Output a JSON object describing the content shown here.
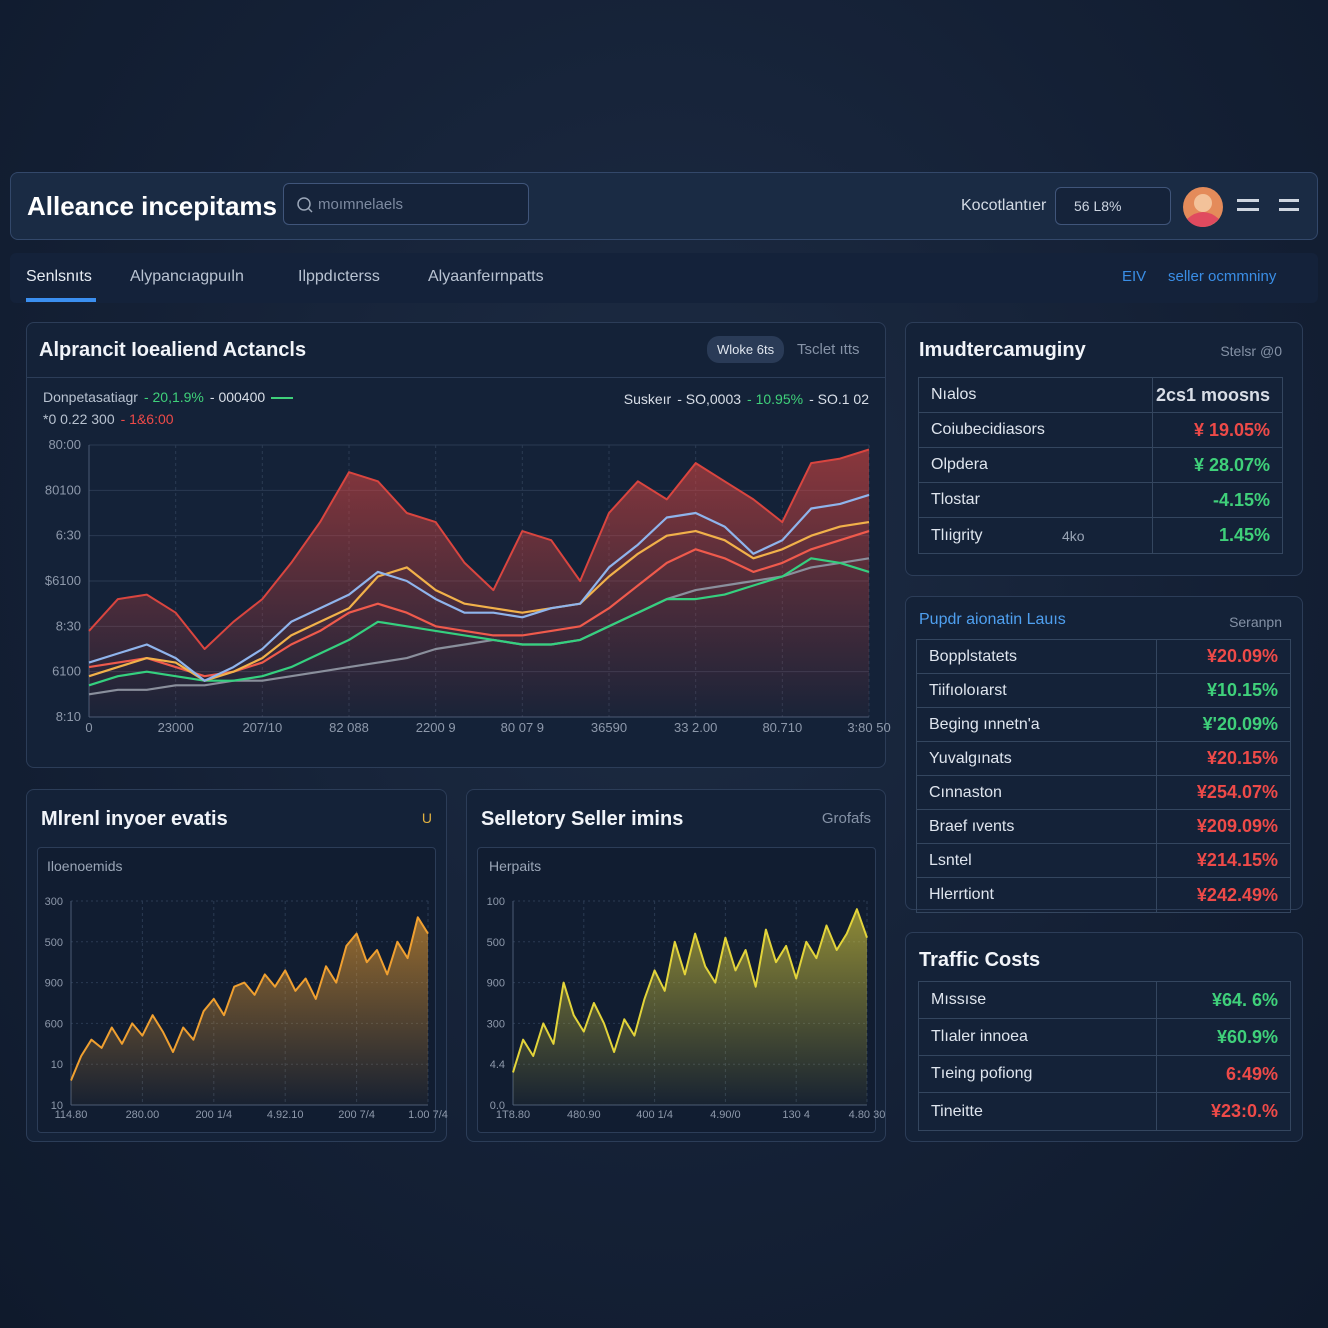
{
  "header": {
    "title": "Alleance incepitams",
    "search": "moımnelaels",
    "status_label": "Kocotlantıer",
    "status_value": "56 L8%"
  },
  "tabs": {
    "items": [
      "Senlsnıts",
      "Alypancıagpuıln",
      "Ilppdıcterss",
      "Alyaanfeırnpatts"
    ],
    "right": [
      "EIV",
      "seller ocmmniny"
    ]
  },
  "main_panel": {
    "title": "Alprancit Ioealiend Actancls",
    "buttons": [
      "Wloke 6ts",
      "Tsclet ıtts"
    ],
    "legend_left": [
      "Donpetasatiagr",
      "- 20,1.9%",
      "- 000400",
      "*0 0.22 300",
      "- 1&6:00"
    ],
    "legend_right": [
      "Suskeır",
      "- SO,0003",
      "- 10.95%",
      "- SO.1 02"
    ]
  },
  "left_panel": {
    "title": "Mlrenl inyoer evatis",
    "corner": "U",
    "label": "Iloenoemids"
  },
  "mid_panel": {
    "title": "Selletory Seller imins",
    "corner": "Grofafs",
    "label": "Herpaits"
  },
  "chart_data": [
    {
      "type": "line",
      "grid": true,
      "xlim": [
        0,
        27
      ],
      "ylim": [
        0,
        6
      ],
      "x": [
        0,
        1,
        2,
        3,
        4,
        5,
        6,
        7,
        8,
        9,
        10,
        11,
        12,
        13,
        14,
        15,
        16,
        17,
        18,
        19,
        20,
        21,
        22,
        23,
        24,
        25,
        26,
        27
      ],
      "xticks": [
        {
          "value": 0,
          "label": "0"
        },
        {
          "value": 3,
          "label": "23000"
        },
        {
          "value": 6,
          "label": "207/10"
        },
        {
          "value": 9,
          "label": "82 088"
        },
        {
          "value": 12,
          "label": "2200 9"
        },
        {
          "value": 15,
          "label": "80 07 9"
        },
        {
          "value": 18,
          "label": "36590"
        },
        {
          "value": 21,
          "label": "33 2.00"
        },
        {
          "value": 24,
          "label": "80.710"
        },
        {
          "value": 27,
          "label": "3:80 50"
        }
      ],
      "yticks": [
        {
          "value": 0,
          "label": "8:10"
        },
        {
          "value": 1,
          "label": "6100"
        },
        {
          "value": 2,
          "label": "8:30"
        },
        {
          "value": 3,
          "label": "$6100"
        },
        {
          "value": 4,
          "label": "6:30"
        },
        {
          "value": 5,
          "label": "80100"
        },
        {
          "value": 6,
          "label": "80:00"
        }
      ],
      "series": [
        {
          "type": "area",
          "color": "#d9453f",
          "values": [
            1.9,
            2.6,
            2.7,
            2.3,
            1.5,
            2.1,
            2.6,
            3.4,
            4.3,
            5.4,
            5.2,
            4.5,
            4.3,
            3.4,
            2.8,
            4.1,
            3.9,
            3.0,
            4.5,
            5.2,
            4.8,
            5.6,
            5.2,
            4.8,
            4.3,
            5.6,
            5.7,
            5.9
          ]
        },
        {
          "color": "#8a8f9c",
          "values": [
            0.5,
            0.6,
            0.6,
            0.7,
            0.7,
            0.8,
            0.8,
            0.9,
            1.0,
            1.1,
            1.2,
            1.3,
            1.5,
            1.6,
            1.7,
            1.6,
            1.6,
            1.7,
            2.0,
            2.3,
            2.6,
            2.8,
            2.9,
            3.0,
            3.1,
            3.3,
            3.4,
            3.5
          ]
        },
        {
          "color": "#35d07f",
          "values": [
            0.7,
            0.9,
            1.0,
            0.9,
            0.8,
            0.8,
            0.9,
            1.1,
            1.4,
            1.7,
            2.1,
            2.0,
            1.9,
            1.8,
            1.7,
            1.6,
            1.6,
            1.7,
            2.0,
            2.3,
            2.6,
            2.6,
            2.7,
            2.9,
            3.1,
            3.5,
            3.4,
            3.2
          ]
        },
        {
          "color": "#ef5a4c",
          "values": [
            1.1,
            1.2,
            1.3,
            1.1,
            0.9,
            1.0,
            1.2,
            1.6,
            1.9,
            2.3,
            2.5,
            2.3,
            2.0,
            1.9,
            1.8,
            1.8,
            1.9,
            2.0,
            2.4,
            2.9,
            3.4,
            3.7,
            3.5,
            3.2,
            3.4,
            3.7,
            3.9,
            4.1
          ]
        },
        {
          "color": "#f1b14a",
          "values": [
            0.9,
            1.1,
            1.3,
            1.2,
            0.8,
            1.0,
            1.3,
            1.8,
            2.1,
            2.4,
            3.1,
            3.3,
            2.8,
            2.5,
            2.4,
            2.3,
            2.4,
            2.5,
            3.1,
            3.6,
            4.0,
            4.1,
            3.9,
            3.5,
            3.7,
            4.0,
            4.2,
            4.3
          ]
        },
        {
          "color": "#8fb4ec",
          "values": [
            1.2,
            1.4,
            1.6,
            1.3,
            0.8,
            1.1,
            1.5,
            2.1,
            2.4,
            2.7,
            3.2,
            3.0,
            2.6,
            2.3,
            2.3,
            2.2,
            2.4,
            2.5,
            3.3,
            3.8,
            4.4,
            4.5,
            4.2,
            3.6,
            3.9,
            4.6,
            4.7,
            4.9
          ]
        }
      ]
    },
    {
      "type": "area",
      "grid": true,
      "xlim": [
        0,
        35
      ],
      "ylim": [
        0,
        5
      ],
      "x": [
        0,
        1,
        2,
        3,
        4,
        5,
        6,
        7,
        8,
        9,
        10,
        11,
        12,
        13,
        14,
        15,
        16,
        17,
        18,
        19,
        20,
        21,
        22,
        23,
        24,
        25,
        26,
        27,
        28,
        29,
        30,
        31,
        32,
        33,
        34,
        35
      ],
      "xticks": [
        {
          "value": 0,
          "label": "114.80"
        },
        {
          "value": 7,
          "label": "280.00"
        },
        {
          "value": 14,
          "label": "200 1/4"
        },
        {
          "value": 21,
          "label": "4.92.10"
        },
        {
          "value": 28,
          "label": "200 7/4"
        },
        {
          "value": 35,
          "label": "1.00 7/4"
        }
      ],
      "yticks": [
        {
          "value": 0,
          "label": "10"
        },
        {
          "value": 1,
          "label": "10"
        },
        {
          "value": 2,
          "label": "600"
        },
        {
          "value": 3,
          "label": "900"
        },
        {
          "value": 4,
          "label": "500"
        },
        {
          "value": 5,
          "label": "300"
        }
      ],
      "series": [
        {
          "color": "#f0a030",
          "values": [
            0.6,
            1.2,
            1.6,
            1.4,
            1.9,
            1.5,
            2.0,
            1.7,
            2.2,
            1.8,
            1.3,
            1.9,
            1.6,
            2.3,
            2.6,
            2.2,
            2.9,
            3.0,
            2.7,
            3.2,
            2.9,
            3.3,
            2.8,
            3.1,
            2.6,
            3.4,
            3.0,
            3.9,
            4.2,
            3.5,
            3.8,
            3.2,
            4.0,
            3.6,
            4.6,
            4.2
          ]
        }
      ]
    },
    {
      "type": "area",
      "grid": true,
      "xlim": [
        0,
        35
      ],
      "ylim": [
        0,
        5
      ],
      "x": [
        0,
        1,
        2,
        3,
        4,
        5,
        6,
        7,
        8,
        9,
        10,
        11,
        12,
        13,
        14,
        15,
        16,
        17,
        18,
        19,
        20,
        21,
        22,
        23,
        24,
        25,
        26,
        27,
        28,
        29,
        30,
        31,
        32,
        33,
        34,
        35
      ],
      "xticks": [
        {
          "value": 0,
          "label": "1T8.80"
        },
        {
          "value": 7,
          "label": "480.90"
        },
        {
          "value": 14,
          "label": "400 1/4"
        },
        {
          "value": 21,
          "label": "4.90/0"
        },
        {
          "value": 28,
          "label": "130 4"
        },
        {
          "value": 35,
          "label": "4.80 30"
        }
      ],
      "yticks": [
        {
          "value": 0,
          "label": "0.0"
        },
        {
          "value": 1,
          "label": "4.4"
        },
        {
          "value": 2,
          "label": "300"
        },
        {
          "value": 3,
          "label": "900"
        },
        {
          "value": 4,
          "label": "500"
        },
        {
          "value": 5,
          "label": "100"
        }
      ],
      "series": [
        {
          "color": "#e3d43a",
          "values": [
            0.8,
            1.6,
            1.2,
            2.0,
            1.5,
            3.0,
            2.2,
            1.8,
            2.5,
            2.0,
            1.3,
            2.1,
            1.7,
            2.6,
            3.3,
            2.8,
            4.0,
            3.2,
            4.2,
            3.4,
            3.0,
            4.1,
            3.3,
            3.8,
            2.9,
            4.3,
            3.5,
            3.9,
            3.1,
            4.0,
            3.6,
            4.4,
            3.8,
            4.2,
            4.8,
            4.1
          ]
        }
      ]
    }
  ],
  "tables": [
    {
      "title": "Imudtercamuginy",
      "corner": "Stelsr @0",
      "rows": [
        {
          "cells": [
            "Nıalos",
            "2cs1 moosns"
          ],
          "color": "#d8dde6"
        },
        {
          "cells": [
            "Coiubecidiasors",
            "¥ 19.05%"
          ],
          "color": "#ee4a48"
        },
        {
          "cells": [
            "Olpdera",
            "¥ 28.07%"
          ],
          "color": "#3fd07a"
        },
        {
          "cells": [
            "Tlostar",
            "-4.15%"
          ],
          "color": "#3fd07a"
        },
        {
          "cells": [
            "Tlıigrity",
            "4ko",
            "1.45%"
          ],
          "color": "#3fd07a"
        }
      ]
    },
    {
      "title": "Pupdr aionatin Lauıs",
      "corner": "Seranpn",
      "rows": [
        {
          "cells": [
            "Bopplstatets",
            "¥20.09%"
          ],
          "color": "#ee4a48"
        },
        {
          "cells": [
            "Tiifıoloıarst",
            "¥10.15%"
          ],
          "color": "#3fd07a"
        },
        {
          "cells": [
            "Beging ınnetn'a",
            "¥'20.09%"
          ],
          "color": "#3fd07a"
        },
        {
          "cells": [
            "Yuvalgınats",
            "¥20.15%"
          ],
          "color": "#ee4a48"
        },
        {
          "cells": [
            "Cınnaston",
            "¥254.07%"
          ],
          "color": "#ee4a48"
        },
        {
          "cells": [
            "Braef ıvents",
            "¥209.09%"
          ],
          "color": "#ee4a48"
        },
        {
          "cells": [
            "Lsntel",
            "¥214.15%"
          ],
          "color": "#ee4a48"
        },
        {
          "cells": [
            "Hlerrtiont",
            "¥242.49%"
          ],
          "color": "#ee4a48"
        }
      ]
    },
    {
      "title": "Traffic Costs",
      "rows": [
        {
          "cells": [
            "Mıssıse",
            "¥64. 6%"
          ],
          "color": "#3fd07a"
        },
        {
          "cells": [
            "Tlıaler innoea",
            "¥60.9%"
          ],
          "color": "#3fd07a"
        },
        {
          "cells": [
            "Tıeing pofiong",
            "6:49%"
          ],
          "color": "#ee4a48"
        },
        {
          "cells": [
            "Tineitte",
            "¥23:0.%"
          ],
          "color": "#ee4a48"
        }
      ]
    }
  ]
}
